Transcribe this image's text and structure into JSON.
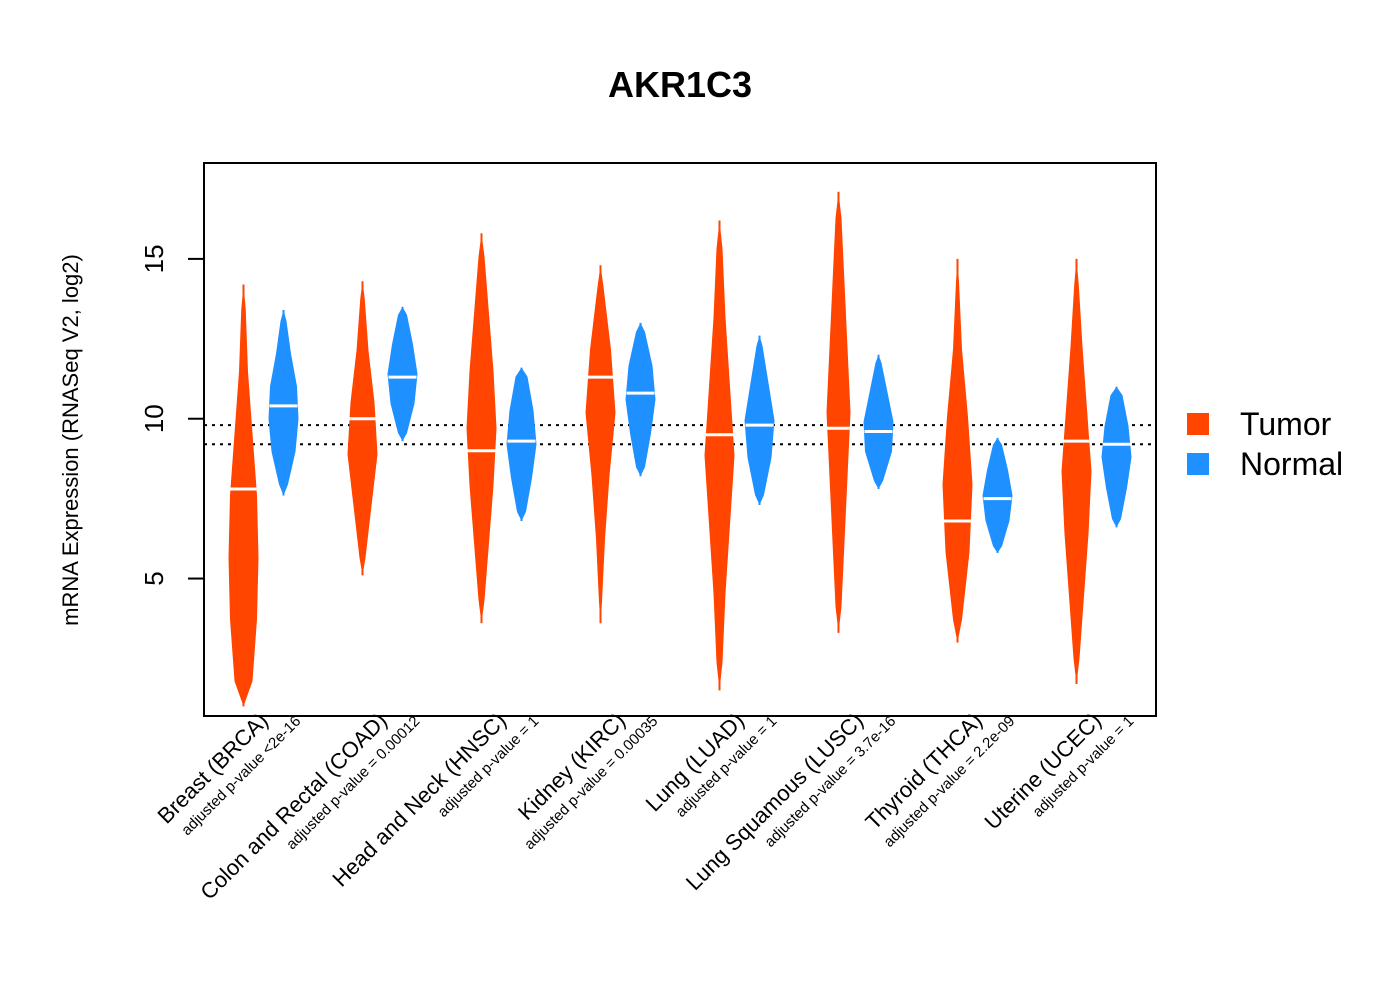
{
  "chart_data": {
    "type": "violin",
    "title": "AKR1C3",
    "ylabel": "mRNA Expression (RNASeq V2, log2)",
    "xlabel": "",
    "ylim": [
      0.7,
      18.0
    ],
    "yticks": [
      5,
      10,
      15
    ],
    "reference_lines": [
      9.2,
      9.8
    ],
    "legend": {
      "position": "right",
      "entries": [
        {
          "name": "Tumor",
          "color": "#ff4500"
        },
        {
          "name": "Normal",
          "color": "#1e90ff"
        }
      ]
    },
    "categories": [
      {
        "label": "Breast (BRCA)",
        "pvalue": "adjusted p-value <2e-16",
        "tumor": {
          "median": 7.8,
          "min": 1.0,
          "max": 14.2,
          "spread": [
            0.6,
            0.9,
            1.0,
            0.9,
            0.6,
            0.3,
            0.15
          ]
        },
        "normal": {
          "median": 10.4,
          "min": 7.6,
          "max": 13.4,
          "spread": [
            0.3,
            0.8,
            1.0,
            0.9,
            0.5,
            0.2
          ]
        }
      },
      {
        "label": "Colon and Rectal (COAD)",
        "pvalue": "adjusted p-value = 0.00012",
        "tumor": {
          "median": 10.0,
          "min": 5.1,
          "max": 14.3,
          "spread": [
            0.2,
            0.6,
            1.0,
            0.8,
            0.4,
            0.15
          ]
        },
        "normal": {
          "median": 11.3,
          "min": 9.3,
          "max": 13.5,
          "spread": [
            0.3,
            0.8,
            1.0,
            0.7,
            0.3
          ]
        }
      },
      {
        "label": "Head and Neck (HNSC)",
        "pvalue": "adjusted p-value = 1",
        "tumor": {
          "median": 9.0,
          "min": 3.6,
          "max": 15.8,
          "spread": [
            0.2,
            0.5,
            0.8,
            1.0,
            0.8,
            0.5,
            0.2
          ]
        },
        "normal": {
          "median": 9.3,
          "min": 6.8,
          "max": 11.6,
          "spread": [
            0.3,
            0.7,
            1.0,
            0.8,
            0.4
          ]
        }
      },
      {
        "label": "Kidney (KIRC)",
        "pvalue": "adjusted p-value = 0.00035",
        "tumor": {
          "median": 11.3,
          "min": 3.6,
          "max": 14.8,
          "spread": [
            0.1,
            0.3,
            0.6,
            1.0,
            0.7,
            0.2
          ]
        },
        "normal": {
          "median": 10.8,
          "min": 8.2,
          "max": 13.0,
          "spread": [
            0.3,
            0.7,
            1.0,
            0.8,
            0.3
          ]
        }
      },
      {
        "label": "Lung (LUAD)",
        "pvalue": "adjusted p-value = 1",
        "tumor": {
          "median": 9.5,
          "min": 1.5,
          "max": 16.2,
          "spread": [
            0.2,
            0.4,
            0.7,
            1.0,
            0.7,
            0.4,
            0.2
          ]
        },
        "normal": {
          "median": 9.8,
          "min": 7.3,
          "max": 12.6,
          "spread": [
            0.3,
            0.8,
            1.0,
            0.6,
            0.2
          ]
        }
      },
      {
        "label": "Lung Squamous (LUSC)",
        "pvalue": "adjusted p-value = 3.7e-16",
        "tumor": {
          "median": 9.7,
          "min": 3.3,
          "max": 17.1,
          "spread": [
            0.2,
            0.4,
            0.6,
            0.8,
            0.6,
            0.4,
            0.2
          ]
        },
        "normal": {
          "median": 9.6,
          "min": 7.8,
          "max": 12.0,
          "spread": [
            0.3,
            0.9,
            1.0,
            0.6,
            0.2
          ]
        }
      },
      {
        "label": "Thyroid (THCA)",
        "pvalue": "adjusted p-value = 2.2e-09",
        "tumor": {
          "median": 6.8,
          "min": 3.0,
          "max": 15.0,
          "spread": [
            0.3,
            0.8,
            1.0,
            0.7,
            0.3,
            0.1
          ]
        },
        "normal": {
          "median": 7.5,
          "min": 5.8,
          "max": 9.4,
          "spread": [
            0.3,
            0.8,
            1.0,
            0.7,
            0.3
          ]
        }
      },
      {
        "label": "Uterine (UCEC)",
        "pvalue": "adjusted p-value = 1",
        "tumor": {
          "median": 9.3,
          "min": 1.7,
          "max": 15.0,
          "spread": [
            0.2,
            0.5,
            0.8,
            1.0,
            0.7,
            0.4,
            0.15
          ]
        },
        "normal": {
          "median": 9.2,
          "min": 6.6,
          "max": 11.0,
          "spread": [
            0.3,
            0.7,
            1.0,
            0.8,
            0.4
          ]
        }
      }
    ]
  }
}
